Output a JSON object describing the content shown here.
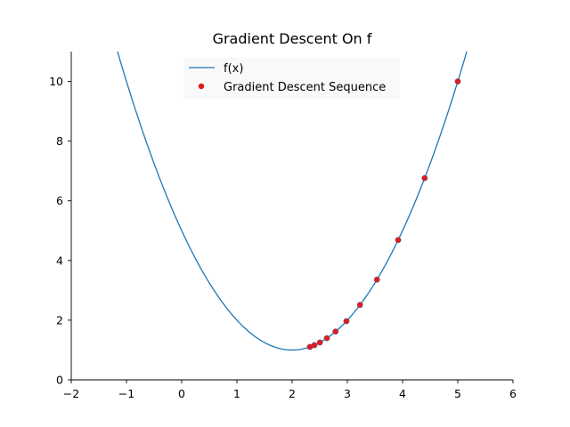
{
  "chart_data": {
    "type": "line",
    "title": "Gradient Descent On f",
    "xlabel": "",
    "ylabel": "",
    "xlim": [
      -2,
      6
    ],
    "ylim": [
      0,
      11
    ],
    "x_ticks": [
      -2,
      -1,
      0,
      1,
      2,
      3,
      4,
      5,
      6
    ],
    "x_tick_labels": [
      "−2",
      "−1",
      "0",
      "1",
      "2",
      "3",
      "4",
      "5",
      "6"
    ],
    "y_ticks": [
      0,
      2,
      4,
      6,
      8,
      10
    ],
    "y_tick_labels": [
      "0",
      "2",
      "4",
      "6",
      "8",
      "10"
    ],
    "grid": false,
    "legend": "top-center",
    "series": [
      {
        "name": "f(x)",
        "kind": "line",
        "color": "#1f77b4",
        "function": "(x-2)^2+1",
        "x_range": [
          -2,
          6
        ]
      },
      {
        "name": "Gradient Descent Sequence",
        "kind": "scatter",
        "color": "#e31a1c",
        "x": [
          5.0,
          4.4,
          3.92,
          3.536,
          3.229,
          2.983,
          2.786,
          2.629,
          2.503,
          2.403,
          2.322
        ],
        "y": [
          10.0,
          6.76,
          4.686,
          3.359,
          2.51,
          1.966,
          1.618,
          1.396,
          1.253,
          1.162,
          1.104
        ]
      }
    ]
  }
}
